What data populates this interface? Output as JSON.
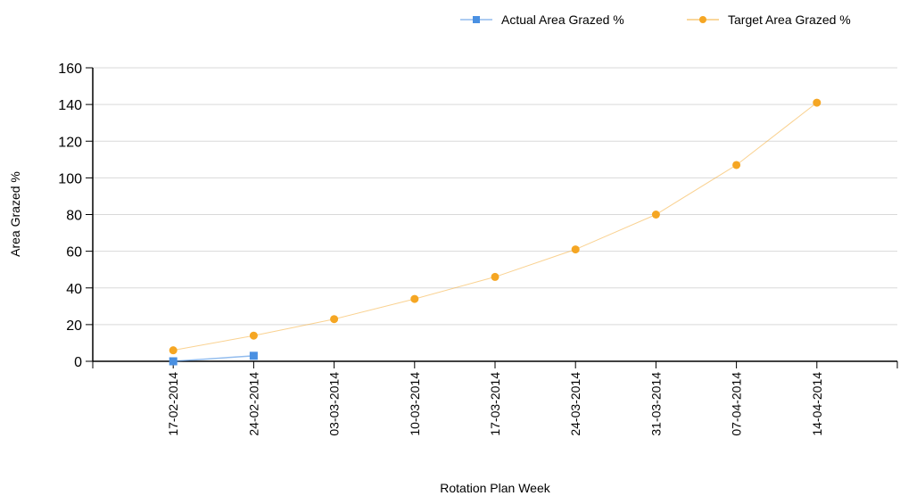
{
  "chart_data": {
    "type": "line",
    "xlabel": "Rotation Plan Week",
    "ylabel": "Area Grazed %",
    "categories": [
      "17-02-2014",
      "24-02-2014",
      "03-03-2014",
      "10-03-2014",
      "17-03-2014",
      "24-03-2014",
      "31-03-2014",
      "07-04-2014",
      "14-04-2014"
    ],
    "ylim": [
      0,
      160
    ],
    "yticks": [
      0,
      20,
      40,
      60,
      80,
      100,
      120,
      140,
      160
    ],
    "grid": true,
    "legend_position": "top-right",
    "series": [
      {
        "name": "Actual Area Grazed %",
        "color": "#4a90e2",
        "marker": "square",
        "values": [
          0,
          3,
          null,
          null,
          null,
          null,
          null,
          null,
          null
        ]
      },
      {
        "name": "Target Area Grazed %",
        "color": "#f5a623",
        "marker": "circle",
        "values": [
          6,
          14,
          23,
          34,
          46,
          61,
          80,
          107,
          141
        ]
      }
    ]
  }
}
